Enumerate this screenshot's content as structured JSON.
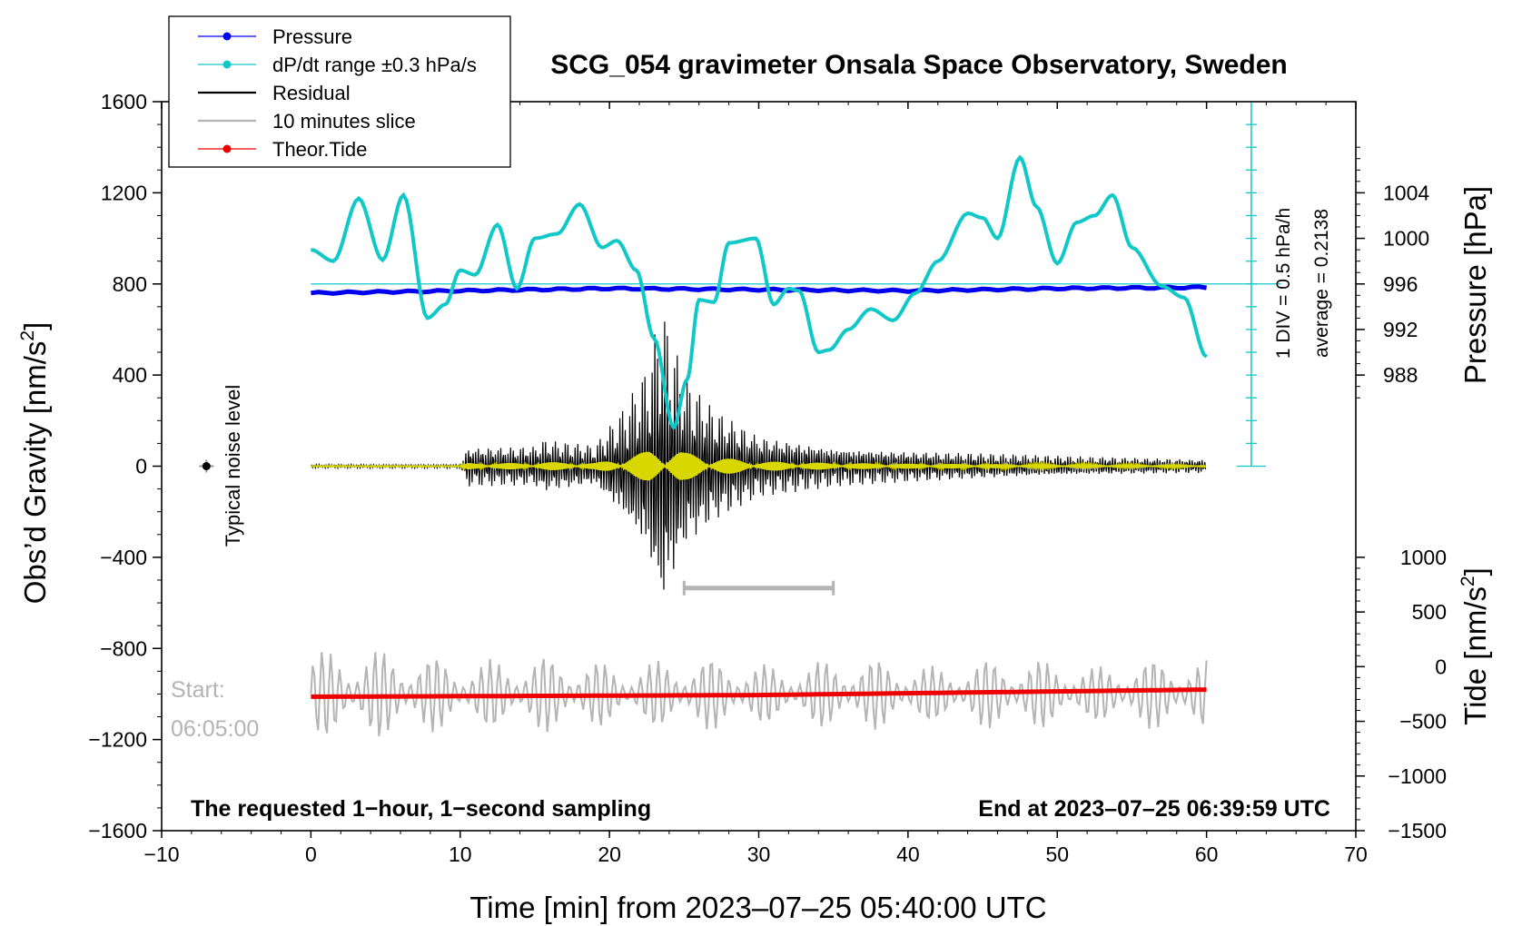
{
  "chart_data": {
    "type": "line",
    "title": "SCG_054 gravimeter Onsala Space Observatory, Sweden",
    "xlabel": "Time [min] from 2023–07–25 05:40:00 UTC",
    "ylabel_left": "Obs’d Gravity [nm/s",
    "ylabel_left_sup": "2",
    "ylabel_left_close": "]",
    "ylabel_right_top": "Pressure [hPa]",
    "ylabel_right_bottom": "Tide [nm/s",
    "ylabel_right_bottom_sup": "2",
    "ylabel_right_bottom_close": "]",
    "xlim": [
      -10,
      70
    ],
    "ylim": [
      -1600,
      1600
    ],
    "x_ticks": [
      "−10",
      "0",
      "10",
      "20",
      "30",
      "40",
      "50",
      "60",
      "70"
    ],
    "x_tick_values": [
      -10,
      0,
      10,
      20,
      30,
      40,
      50,
      60,
      70
    ],
    "y_ticks": [
      "1600",
      "1200",
      "800",
      "400",
      "0",
      "−400",
      "−800",
      "−1200",
      "−1600"
    ],
    "y_tick_values": [
      1600,
      1200,
      800,
      400,
      0,
      -400,
      -800,
      -1200,
      -1600
    ],
    "pressure_ticks": [
      "1004",
      "1000",
      "996",
      "992",
      "988"
    ],
    "pressure_tick_values": [
      1004,
      1000,
      996,
      992,
      988
    ],
    "pressure_axis": {
      "value_at_y800": 996,
      "hPa_per_400_nms2": 8
    },
    "tide_ticks": [
      "1000",
      "500",
      "0",
      "−500",
      "−1000",
      "−1500"
    ],
    "tide_tick_values": [
      1000,
      500,
      0,
      -500,
      -1000,
      -1500
    ],
    "tide_axis": {
      "value_at_y_minus1600": -1500,
      "value_at_y_minus400": 1000
    },
    "legend": [
      {
        "label": "Pressure",
        "color": "#0000ee",
        "marker": true
      },
      {
        "label": "dP/dt range ±0.3 hPa/s",
        "color": "#10c8c8",
        "marker": true
      },
      {
        "label": "Residual",
        "color": "#000000",
        "marker": false
      },
      {
        "label": "10 minutes slice",
        "color": "#b4b4b4",
        "marker": false
      },
      {
        "label": "Theor.Tide",
        "color": "#ee0000",
        "marker": true
      }
    ],
    "series": [
      {
        "name": "Pressure",
        "units": "hPa",
        "color": "#0000ee",
        "x": [
          0,
          10,
          20,
          30,
          40,
          50,
          60
        ],
        "y": [
          995.2,
          995.4,
          995.6,
          995.5,
          995.4,
          995.6,
          995.7
        ]
      },
      {
        "name": "dP/dt",
        "units": "nm/s2 (plotted)",
        "color": "#10c8c8",
        "x": [
          0,
          1.5,
          3.2,
          4.8,
          6.2,
          7.8,
          9,
          10,
          11,
          12.5,
          13.8,
          15,
          16.5,
          18,
          19.5,
          20.5,
          21.8,
          23,
          24.3,
          25.2,
          26,
          27,
          28,
          29.8,
          31,
          32,
          32.7,
          34,
          34.7,
          36,
          37.5,
          39,
          40.5,
          42,
          44,
          45,
          46,
          47.5,
          48.6,
          50,
          51.3,
          52.5,
          53.7,
          55,
          57,
          58.5,
          60
        ],
        "y": [
          950,
          900,
          1175,
          905,
          1190,
          650,
          710,
          860,
          840,
          1060,
          780,
          1000,
          1020,
          1150,
          960,
          990,
          860,
          560,
          170,
          380,
          730,
          720,
          980,
          1000,
          710,
          780,
          770,
          500,
          510,
          600,
          690,
          640,
          760,
          900,
          1110,
          1090,
          1000,
          1355,
          1140,
          890,
          1070,
          1100,
          1190,
          960,
          790,
          740,
          480
        ]
      },
      {
        "name": "Residual",
        "units": "nm/s2",
        "color": "#000000",
        "envelope_x": [
          0,
          10,
          10.5,
          15,
          15.5,
          19,
          21,
          22.5,
          23.5,
          25,
          27,
          30,
          35,
          40,
          50,
          60
        ],
        "envelope_y": [
          8,
          8,
          90,
          90,
          120,
          90,
          260,
          430,
          710,
          400,
          260,
          140,
          90,
          70,
          45,
          30
        ]
      },
      {
        "name": "Residual (filtered)",
        "color": "#d8d800"
      },
      {
        "name": "10 minutes slice",
        "color": "#b4b4b4"
      },
      {
        "name": "Theor.Tide",
        "units": "nm/s2 (tide axis)",
        "color": "#ee0000",
        "x": [
          0,
          30,
          60
        ],
        "y": [
          -275,
          -260,
          -210
        ]
      }
    ],
    "aux_line": {
      "name": "pressure reference",
      "y": 800,
      "color": "#10c8c8"
    },
    "scale_bar": {
      "label_1": "1 DIV = 0.5 hPa/h",
      "label_2": "average = 0.2138",
      "x": 63,
      "y_bottom": 0,
      "y_top": 1600
    },
    "slice_bar": {
      "x_start": 25,
      "x_end": 35,
      "y": -535
    },
    "noise_marker": {
      "label": "Typical noise level",
      "x": -7,
      "y": 0
    },
    "start_label_1": "Start:",
    "start_label_2": "06:05:00",
    "note_left": "The requested 1−hour, 1−second sampling",
    "note_right": "End at 2023–07–25 06:39:59 UTC"
  }
}
